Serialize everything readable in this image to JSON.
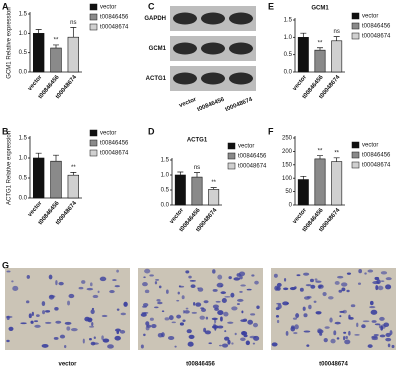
{
  "chart_data": [
    {
      "type": "bar",
      "panel": "A",
      "ylabel": "GCM1 Relative expression",
      "categories": [
        "vector",
        "t00846456",
        "t00048674"
      ],
      "values": [
        1.0,
        0.62,
        0.9
      ],
      "errors": [
        0.1,
        0.08,
        0.25
      ],
      "significance": [
        null,
        "**",
        "ns"
      ],
      "colors": [
        "#111111",
        "#8a8a8a",
        "#d0d0d0"
      ],
      "ylim": [
        0,
        1.5
      ],
      "yticks": [
        {
          "value": 0,
          "label": "0.0"
        },
        0.5,
        {
          "value": 1,
          "label": "1.0"
        },
        1.5
      ],
      "legend": "right"
    },
    {
      "type": "bar",
      "panel": "B",
      "ylabel": "ACTG1 Relative expression",
      "categories": [
        "vector",
        "t00846456",
        "t00048674"
      ],
      "values": [
        1.0,
        0.92,
        0.57
      ],
      "errors": [
        0.12,
        0.15,
        0.07
      ],
      "significance": [
        null,
        null,
        "**"
      ],
      "colors": [
        "#111111",
        "#8a8a8a",
        "#d0d0d0"
      ],
      "ylim": [
        0,
        1.5
      ],
      "yticks": [
        {
          "value": 0,
          "label": "0.0"
        },
        0.5,
        {
          "value": 1,
          "label": "1.0"
        },
        1.5
      ],
      "legend": "right"
    },
    {
      "type": "bar",
      "panel": "D",
      "title": "ACTG1",
      "categories": [
        "vector",
        "t00846456",
        "t00048674"
      ],
      "values": [
        1.0,
        0.93,
        0.52
      ],
      "errors": [
        0.1,
        0.15,
        0.06
      ],
      "significance": [
        null,
        "ns",
        "**"
      ],
      "colors": [
        "#111111",
        "#8a8a8a",
        "#d0d0d0"
      ],
      "ylim": [
        0,
        1.5
      ],
      "yticks": [
        {
          "value": 0,
          "label": "0.0"
        },
        0.5,
        {
          "value": 1,
          "label": "1.0"
        },
        1.5
      ],
      "legend": "right"
    },
    {
      "type": "bar",
      "panel": "E",
      "title": "GCM1",
      "categories": [
        "vector",
        "t00846456",
        "t00048674"
      ],
      "values": [
        1.0,
        0.63,
        0.9
      ],
      "errors": [
        0.12,
        0.07,
        0.12
      ],
      "significance": [
        null,
        "**",
        "ns"
      ],
      "colors": [
        "#111111",
        "#8a8a8a",
        "#d0d0d0"
      ],
      "ylim": [
        0,
        1.5
      ],
      "yticks": [
        {
          "value": 0,
          "label": "0.0"
        },
        0.5,
        {
          "value": 1,
          "label": "1.0"
        },
        1.5
      ],
      "legend": "right"
    },
    {
      "type": "bar",
      "panel": "F",
      "categories": [
        "vector",
        "t00846456",
        "t00048674"
      ],
      "values": [
        95,
        172,
        162
      ],
      "errors": [
        12,
        12,
        14
      ],
      "significance": [
        null,
        "**",
        "**"
      ],
      "colors": [
        "#111111",
        "#8a8a8a",
        "#d0d0d0"
      ],
      "ylim": [
        0,
        250
      ],
      "yticks": [
        0,
        50,
        100,
        150,
        200,
        250
      ],
      "legend": "right"
    }
  ],
  "blot": {
    "panel": "C",
    "rows": [
      "GAPDH",
      "GCM1",
      "ACTG1"
    ],
    "lanes": [
      "vector",
      "t00846456",
      "t00048674"
    ]
  },
  "micrographs": {
    "panel": "G",
    "captions": [
      "vector",
      "t00846456",
      "t00048674"
    ]
  }
}
